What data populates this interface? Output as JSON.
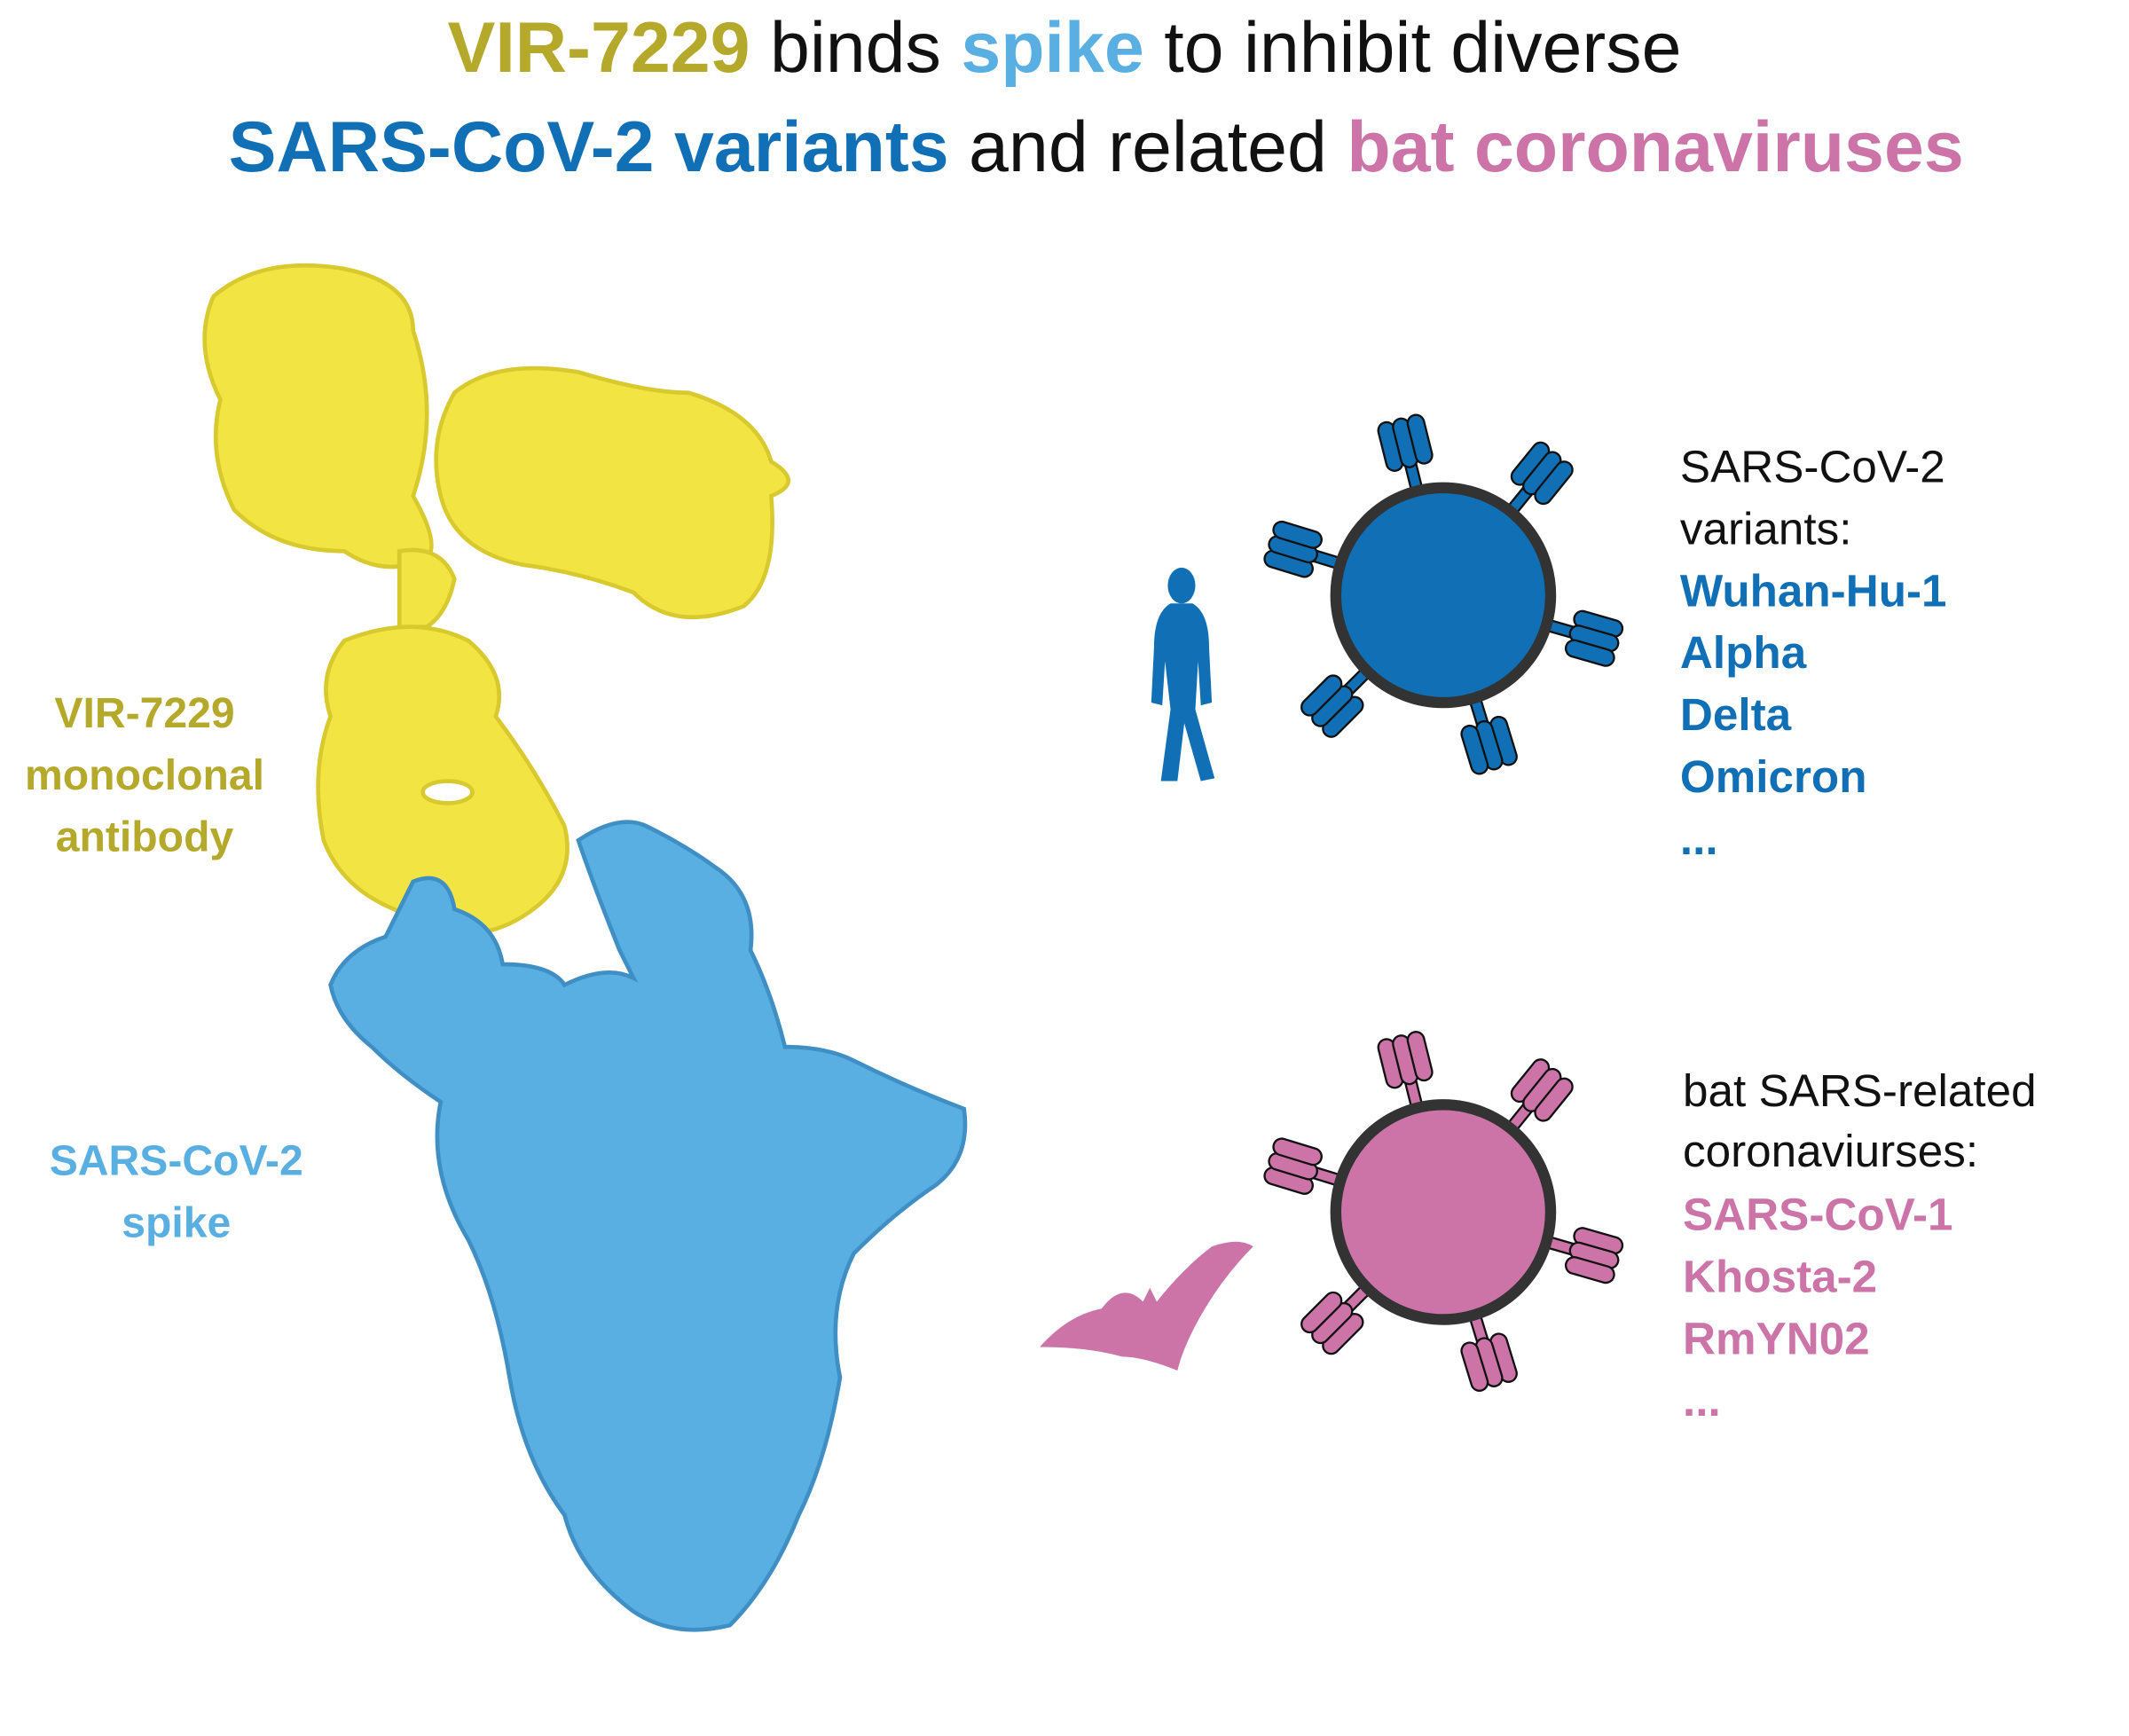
{
  "title": {
    "line1": [
      "VIR-7229",
      "binds",
      "spike",
      "to inhibit diverse"
    ],
    "line2": [
      "SARS-CoV-2 variants",
      "and related",
      "bat coronaviruses"
    ]
  },
  "antibody_label": [
    "VIR-7229",
    "monoclonal",
    "antibody"
  ],
  "spike_label": [
    "SARS-CoV-2",
    "spike"
  ],
  "variants": {
    "heading": [
      "SARS-CoV-2",
      "variants:"
    ],
    "items": [
      "Wuhan-Hu-1",
      "Alpha",
      "Delta",
      "Omicron",
      "..."
    ]
  },
  "bat_viruses": {
    "heading": [
      "bat SARS-related",
      "coronaviurses:"
    ],
    "items": [
      "SARS-CoV-1",
      "Khosta-2",
      "RmYN02",
      "..."
    ]
  }
}
